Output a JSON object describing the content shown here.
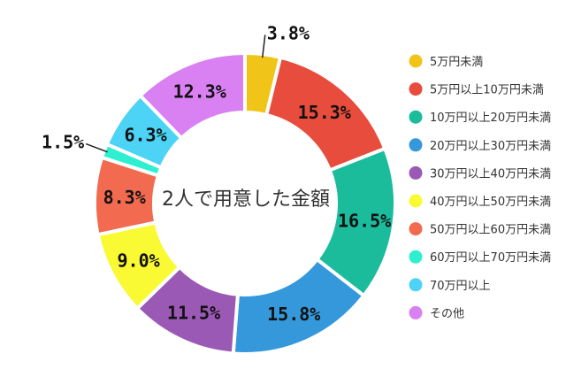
{
  "chart_data": {
    "type": "pie",
    "title": "2人で用意した金額",
    "categories": [
      "5万円未満",
      "5万円以上10万円未満",
      "10万円以上20万円未満",
      "20万円以上30万円未満",
      "30万円以上40万円未満",
      "40万円以上50万円未満",
      "50万円以上60万円未満",
      "60万円以上70万円未満",
      "70万円以上",
      "その他"
    ],
    "values": [
      3.8,
      15.3,
      16.5,
      15.8,
      11.5,
      9.0,
      8.3,
      1.5,
      6.3,
      12.3
    ],
    "value_labels": [
      "3.8%",
      "15.3%",
      "16.5%",
      "15.8%",
      "11.5%",
      "9.0%",
      "8.3%",
      "1.5%",
      "6.3%",
      "12.3%"
    ],
    "colors": [
      "#f0c419",
      "#e74c3c",
      "#1abc9c",
      "#3498db",
      "#9b59b6",
      "#f9f934",
      "#f26b50",
      "#2ef0d0",
      "#4cd3f5",
      "#d980f2"
    ],
    "legend_position": "right",
    "style": "donut"
  }
}
